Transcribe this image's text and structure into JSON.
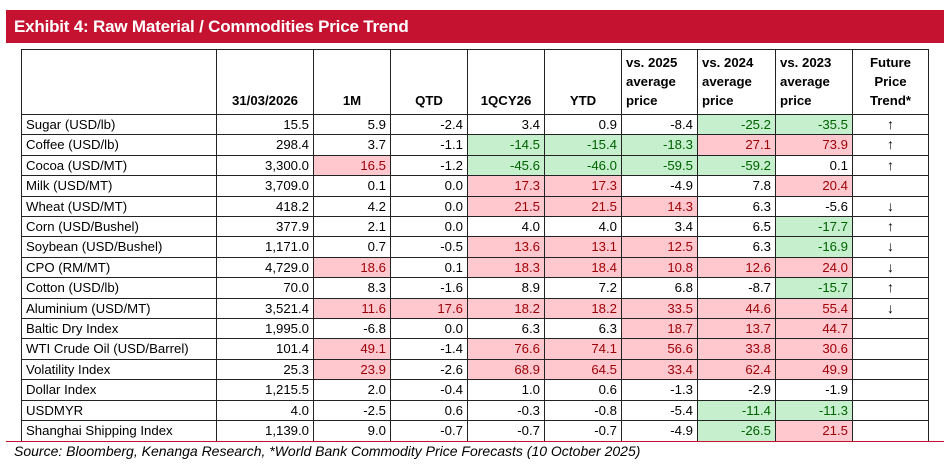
{
  "title": "Exhibit 4: Raw Material / Commodities Price Trend",
  "colors": {
    "title_bar": "#c41230",
    "negative_fill": "#c6efce",
    "negative_text": "#006100",
    "positive_fill": "#ffc7ce",
    "positive_text": "#9c0006"
  },
  "headers": [
    "",
    "31/03/2026",
    "1M",
    "QTD",
    "1QCY26",
    "YTD",
    "vs. 2025\naverage\nprice",
    "vs. 2024\naverage\nprice",
    "vs. 2023\naverage\nprice",
    "Future\nPrice\nTrend*"
  ],
  "rows": [
    {
      "name": "Sugar (USD/lb)",
      "values": [
        "15.5",
        "5.9",
        "-2.4",
        "3.4",
        "0.9",
        "-8.4",
        "-25.2",
        "-35.5"
      ],
      "fills": [
        "",
        "",
        "",
        "",
        "",
        "",
        "green",
        "green"
      ],
      "trend": "↑"
    },
    {
      "name": "Coffee (USD/lb)",
      "values": [
        "298.4",
        "3.7",
        "-1.1",
        "-14.5",
        "-15.4",
        "-18.3",
        "27.1",
        "73.9"
      ],
      "fills": [
        "",
        "",
        "",
        "green",
        "green",
        "green",
        "red",
        "red"
      ],
      "trend": "↑"
    },
    {
      "name": "Cocoa (USD/MT)",
      "values": [
        "3,300.0",
        "16.5",
        "-1.2",
        "-45.6",
        "-46.0",
        "-59.5",
        "-59.2",
        "0.1"
      ],
      "fills": [
        "",
        "red",
        "",
        "green",
        "green",
        "green",
        "green",
        ""
      ],
      "trend": "↑"
    },
    {
      "name": "Milk (USD/MT)",
      "values": [
        "3,709.0",
        "0.1",
        "0.0",
        "17.3",
        "17.3",
        "-4.9",
        "7.8",
        "20.4"
      ],
      "fills": [
        "",
        "",
        "",
        "red",
        "red",
        "",
        "",
        "red"
      ],
      "trend": ""
    },
    {
      "name": "Wheat (USD/MT)",
      "values": [
        "418.2",
        "4.2",
        "0.0",
        "21.5",
        "21.5",
        "14.3",
        "6.3",
        "-5.6"
      ],
      "fills": [
        "",
        "",
        "",
        "red",
        "red",
        "red",
        "",
        ""
      ],
      "trend": "↓"
    },
    {
      "name": "Corn (USD/Bushel)",
      "values": [
        "377.9",
        "2.1",
        "0.0",
        "4.0",
        "4.0",
        "3.4",
        "6.5",
        "-17.7"
      ],
      "fills": [
        "",
        "",
        "",
        "",
        "",
        "",
        "",
        "green"
      ],
      "trend": "↑"
    },
    {
      "name": "Soybean (USD/Bushel)",
      "values": [
        "1,171.0",
        "0.7",
        "-0.5",
        "13.6",
        "13.1",
        "12.5",
        "6.3",
        "-16.9"
      ],
      "fills": [
        "",
        "",
        "",
        "red",
        "red",
        "red",
        "",
        "green"
      ],
      "trend": "↓"
    },
    {
      "name": "CPO (RM/MT)",
      "values": [
        "4,729.0",
        "18.6",
        "0.1",
        "18.3",
        "18.4",
        "10.8",
        "12.6",
        "24.0"
      ],
      "fills": [
        "",
        "red",
        "",
        "red",
        "red",
        "red",
        "red",
        "red"
      ],
      "trend": "↓"
    },
    {
      "name": "Cotton (USD/lb)",
      "values": [
        "70.0",
        "8.3",
        "-1.6",
        "8.9",
        "7.2",
        "6.8",
        "-8.7",
        "-15.7"
      ],
      "fills": [
        "",
        "",
        "",
        "",
        "",
        "",
        "",
        "green"
      ],
      "trend": "↑"
    },
    {
      "name": "Aluminium (USD/MT)",
      "values": [
        "3,521.4",
        "11.6",
        "17.6",
        "18.2",
        "18.2",
        "33.5",
        "44.6",
        "55.4"
      ],
      "fills": [
        "",
        "red",
        "red",
        "red",
        "red",
        "red",
        "red",
        "red"
      ],
      "trend": "↓"
    },
    {
      "name": "Baltic Dry Index",
      "values": [
        "1,995.0",
        "-6.8",
        "0.0",
        "6.3",
        "6.3",
        "18.7",
        "13.7",
        "44.7"
      ],
      "fills": [
        "",
        "",
        "",
        "",
        "",
        "red",
        "red",
        "red"
      ],
      "trend": ""
    },
    {
      "name": "WTI Crude Oil (USD/Barrel)",
      "values": [
        "101.4",
        "49.1",
        "-1.4",
        "76.6",
        "74.1",
        "56.6",
        "33.8",
        "30.6"
      ],
      "fills": [
        "",
        "red",
        "",
        "red",
        "red",
        "red",
        "red",
        "red"
      ],
      "trend": ""
    },
    {
      "name": "Volatility Index",
      "values": [
        "25.3",
        "23.9",
        "-2.6",
        "68.9",
        "64.5",
        "33.4",
        "62.4",
        "49.9"
      ],
      "fills": [
        "",
        "red",
        "",
        "red",
        "red",
        "red",
        "red",
        "red"
      ],
      "trend": ""
    },
    {
      "name": "Dollar Index",
      "values": [
        "1,215.5",
        "2.0",
        "-0.4",
        "1.0",
        "0.6",
        "-1.3",
        "-2.9",
        "-1.9"
      ],
      "fills": [
        "",
        "",
        "",
        "",
        "",
        "",
        "",
        ""
      ],
      "trend": ""
    },
    {
      "name": "USDMYR",
      "values": [
        "4.0",
        "-2.5",
        "0.6",
        "-0.3",
        "-0.8",
        "-5.4",
        "-11.4",
        "-11.3"
      ],
      "fills": [
        "",
        "",
        "",
        "",
        "",
        "",
        "green",
        "green"
      ],
      "trend": ""
    },
    {
      "name": "Shanghai Shipping Index",
      "values": [
        "1,139.0",
        "9.0",
        "-0.7",
        "-0.7",
        "-0.7",
        "-4.9",
        "-26.5",
        "21.5"
      ],
      "fills": [
        "",
        "",
        "",
        "",
        "",
        "",
        "green",
        "red"
      ],
      "trend": ""
    }
  ],
  "source": "Source: Bloomberg, Kenanga Research, *World Bank Commodity Price Forecasts (10 October 2025)"
}
